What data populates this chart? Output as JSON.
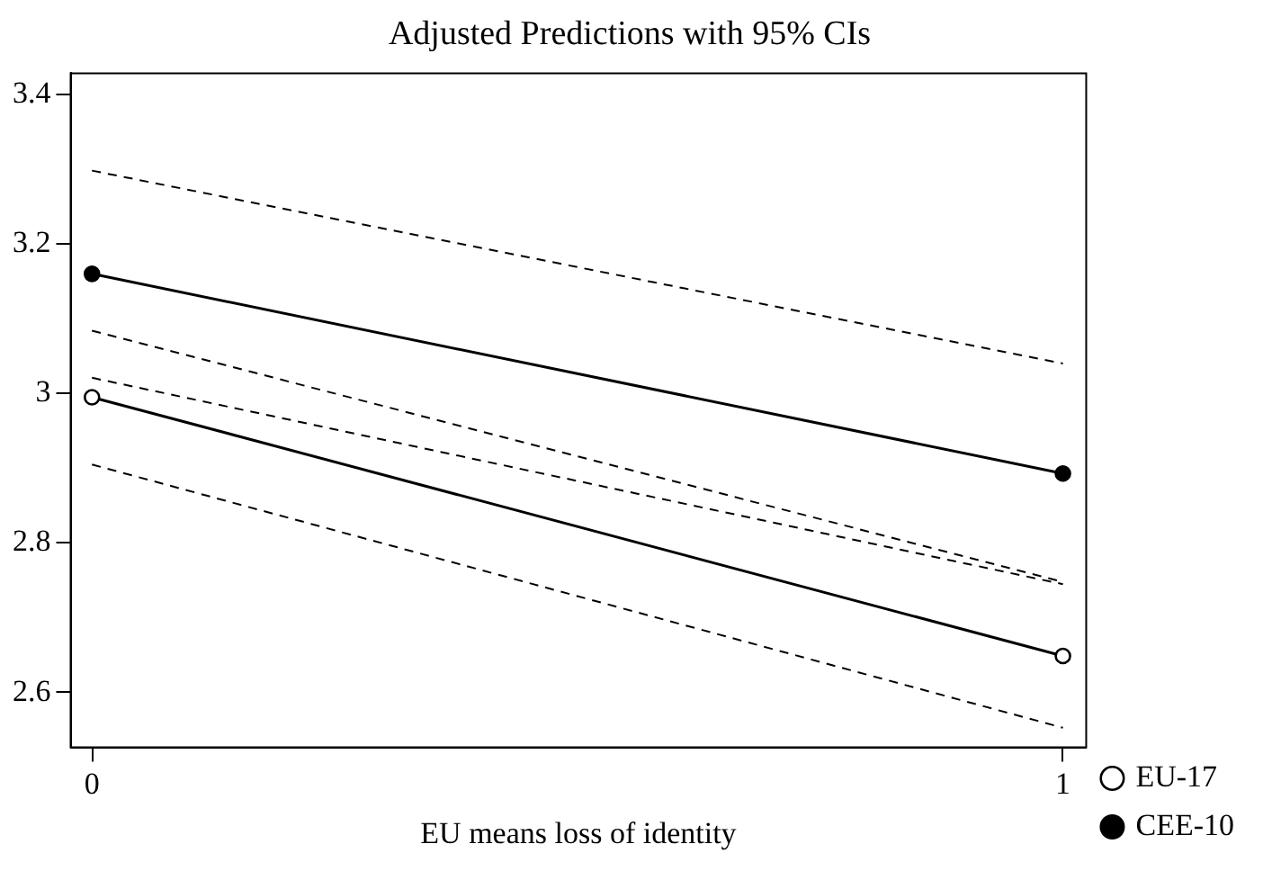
{
  "chart_data": {
    "type": "line",
    "title": "Adjusted Predictions with 95% CIs",
    "xlabel": "EU means loss of identity",
    "x": [
      0,
      1
    ],
    "xlim": [
      -0.022,
      1.024
    ],
    "xticks": [
      0,
      1
    ],
    "ylim": [
      2.527,
      3.428
    ],
    "yticks": [
      2.6,
      2.8,
      3,
      3.2,
      3.4
    ],
    "grid": false,
    "legend": "bottom right",
    "marker": "circle",
    "line_style": "solid",
    "series": [
      {
        "name": "EU-17",
        "color": "#000000",
        "values": [
          2.995,
          2.649
        ]
      },
      {
        "name": "CEE-10",
        "color": "#000000",
        "values": [
          3.16,
          2.893
        ]
      },
      {
        "color": "#000000",
        "values": [
          2.905,
          2.553
        ],
        "marker": "none",
        "line_style": "dashed"
      },
      {
        "color": "#000000",
        "values": [
          3.021,
          2.745
        ],
        "marker": "none",
        "line_style": "dashed"
      },
      {
        "color": "#000000",
        "values": [
          3.084,
          2.748
        ],
        "marker": "none",
        "line_style": "dashed"
      },
      {
        "color": "#000000",
        "values": [
          3.298,
          3.04
        ],
        "marker": "none",
        "line_style": "dashed"
      }
    ]
  }
}
